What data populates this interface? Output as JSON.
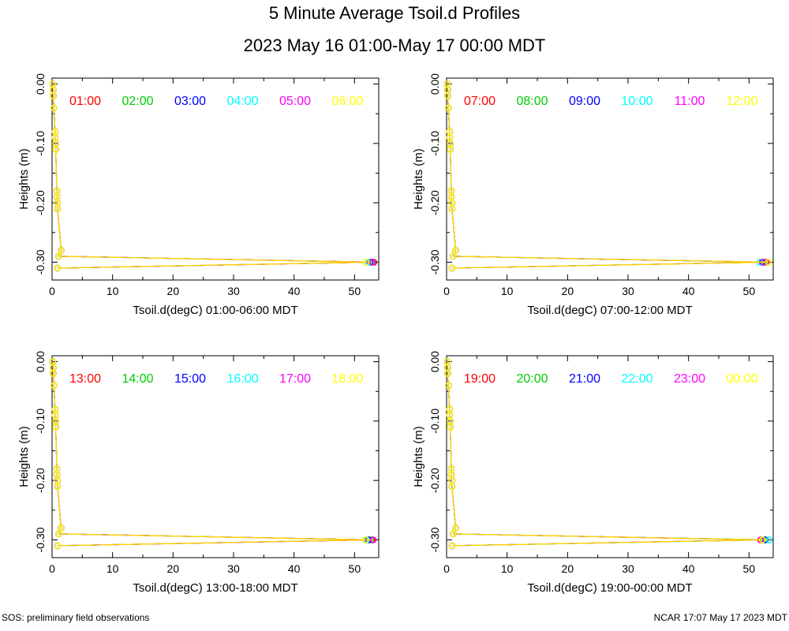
{
  "header": {
    "title": "5 Minute Average Tsoil.d Profiles",
    "subtitle": "2023 May 16 01:00-May 17 00:00 MDT"
  },
  "footer": {
    "left": "SOS: preliminary field observations",
    "right": "NCAR 17:07 May 17 2023 MDT"
  },
  "colors": {
    "series": [
      "#ff0000",
      "#00cc00",
      "#0000ff",
      "#00ffff",
      "#ff00ff",
      "#ffff00"
    ],
    "line": "#ffcc00"
  },
  "chart_data": [
    {
      "type": "line",
      "xlabel": "Tsoil.d(degC) 01:00-06:00 MDT",
      "ylabel": "Heights (m)",
      "xlim": [
        0,
        54
      ],
      "ylim": [
        -0.33,
        0.01
      ],
      "xticks": [
        "0",
        "10",
        "20",
        "30",
        "40",
        "50"
      ],
      "yticks": [
        "-0.30",
        "-0.20",
        "-0.10",
        "0.00"
      ],
      "legend": [
        "01:00",
        "02:00",
        "03:00",
        "04:00",
        "05:00",
        "06:00"
      ],
      "legend_placement": "top",
      "grid": false,
      "series": [
        {
          "name": "01:00",
          "x": [
            0.1,
            0.2,
            0.2,
            0.3,
            0.5,
            0.5,
            0.6,
            0.6,
            0.8,
            0.8,
            0.9,
            0.9,
            1.5,
            1.1,
            53.2,
            0.9
          ],
          "y": [
            0,
            -0.01,
            -0.02,
            -0.04,
            -0.08,
            -0.09,
            -0.1,
            -0.11,
            -0.18,
            -0.19,
            -0.2,
            -0.21,
            -0.28,
            -0.29,
            -0.3,
            -0.31
          ]
        },
        {
          "name": "02:00",
          "x": [
            0.1,
            0.2,
            0.2,
            0.3,
            0.5,
            0.5,
            0.6,
            0.6,
            0.8,
            0.8,
            0.9,
            0.9,
            1.5,
            1.1,
            52.9,
            0.9
          ],
          "y": [
            0,
            -0.01,
            -0.02,
            -0.04,
            -0.08,
            -0.09,
            -0.1,
            -0.11,
            -0.18,
            -0.19,
            -0.2,
            -0.21,
            -0.28,
            -0.29,
            -0.3,
            -0.31
          ]
        },
        {
          "name": "03:00",
          "x": [
            0.1,
            0.2,
            0.2,
            0.3,
            0.5,
            0.5,
            0.6,
            0.6,
            0.8,
            0.8,
            0.9,
            0.9,
            1.5,
            1.1,
            52.6,
            0.9
          ],
          "y": [
            0,
            -0.01,
            -0.02,
            -0.04,
            -0.08,
            -0.09,
            -0.1,
            -0.11,
            -0.18,
            -0.19,
            -0.2,
            -0.21,
            -0.28,
            -0.29,
            -0.3,
            -0.31
          ]
        },
        {
          "name": "04:00",
          "x": [
            0.1,
            0.2,
            0.2,
            0.3,
            0.5,
            0.5,
            0.6,
            0.6,
            0.8,
            0.8,
            0.9,
            0.9,
            1.5,
            1.1,
            52.3,
            0.9
          ],
          "y": [
            0,
            -0.01,
            -0.02,
            -0.04,
            -0.08,
            -0.09,
            -0.1,
            -0.11,
            -0.18,
            -0.19,
            -0.2,
            -0.21,
            -0.28,
            -0.29,
            -0.3,
            -0.31
          ]
        },
        {
          "name": "05:00",
          "x": [
            0.1,
            0.2,
            0.2,
            0.3,
            0.5,
            0.5,
            0.6,
            0.6,
            0.8,
            0.8,
            0.9,
            0.9,
            1.5,
            1.1,
            53.0,
            0.9
          ],
          "y": [
            0,
            -0.01,
            -0.02,
            -0.04,
            -0.08,
            -0.09,
            -0.1,
            -0.11,
            -0.18,
            -0.19,
            -0.2,
            -0.21,
            -0.28,
            -0.29,
            -0.3,
            -0.31
          ]
        },
        {
          "name": "06:00",
          "x": [
            0.1,
            0.2,
            0.2,
            0.3,
            0.5,
            0.5,
            0.6,
            0.6,
            0.8,
            0.8,
            0.9,
            0.9,
            1.5,
            1.1,
            51.9,
            0.9
          ],
          "y": [
            0,
            -0.01,
            -0.02,
            -0.04,
            -0.08,
            -0.09,
            -0.1,
            -0.11,
            -0.18,
            -0.19,
            -0.2,
            -0.21,
            -0.28,
            -0.29,
            -0.3,
            -0.31
          ]
        }
      ]
    },
    {
      "type": "line",
      "xlabel": "Tsoil.d(degC) 07:00-12:00 MDT",
      "ylabel": "Heights (m)",
      "xlim": [
        0,
        54
      ],
      "ylim": [
        -0.33,
        0.01
      ],
      "xticks": [
        "0",
        "10",
        "20",
        "30",
        "40",
        "50"
      ],
      "yticks": [
        "-0.30",
        "-0.20",
        "-0.10",
        "0.00"
      ],
      "legend": [
        "07:00",
        "08:00",
        "09:00",
        "10:00",
        "11:00",
        "12:00"
      ],
      "legend_placement": "top",
      "grid": false,
      "series": [
        {
          "name": "07:00",
          "x": [
            0.1,
            0.2,
            0.2,
            0.3,
            0.5,
            0.5,
            0.6,
            0.6,
            0.8,
            0.8,
            0.9,
            0.9,
            1.5,
            1.1,
            52.8,
            0.9
          ],
          "y": [
            0,
            -0.01,
            -0.02,
            -0.04,
            -0.08,
            -0.09,
            -0.1,
            -0.11,
            -0.18,
            -0.19,
            -0.2,
            -0.21,
            -0.28,
            -0.29,
            -0.3,
            -0.31
          ]
        },
        {
          "name": "08:00",
          "x": [
            0.1,
            0.2,
            0.2,
            0.3,
            0.5,
            0.5,
            0.6,
            0.6,
            0.8,
            0.8,
            0.9,
            0.9,
            1.5,
            1.1,
            52.5,
            0.9
          ],
          "y": [
            0,
            -0.01,
            -0.02,
            -0.04,
            -0.08,
            -0.09,
            -0.1,
            -0.11,
            -0.18,
            -0.19,
            -0.2,
            -0.21,
            -0.28,
            -0.29,
            -0.3,
            -0.31
          ]
        },
        {
          "name": "09:00",
          "x": [
            0.1,
            0.2,
            0.2,
            0.3,
            0.5,
            0.5,
            0.6,
            0.6,
            0.8,
            0.8,
            0.9,
            0.9,
            1.5,
            1.1,
            52.2,
            0.9
          ],
          "y": [
            0,
            -0.01,
            -0.02,
            -0.04,
            -0.08,
            -0.09,
            -0.1,
            -0.11,
            -0.18,
            -0.19,
            -0.2,
            -0.21,
            -0.28,
            -0.29,
            -0.3,
            -0.31
          ]
        },
        {
          "name": "10:00",
          "x": [
            0.1,
            0.2,
            0.2,
            0.3,
            0.5,
            0.5,
            0.6,
            0.6,
            0.8,
            0.8,
            0.9,
            0.9,
            1.5,
            1.1,
            51.8,
            0.9
          ],
          "y": [
            0,
            -0.01,
            -0.02,
            -0.04,
            -0.08,
            -0.09,
            -0.1,
            -0.11,
            -0.18,
            -0.19,
            -0.2,
            -0.21,
            -0.28,
            -0.29,
            -0.3,
            -0.31
          ]
        },
        {
          "name": "11:00",
          "x": [
            0.1,
            0.2,
            0.2,
            0.3,
            0.5,
            0.5,
            0.6,
            0.6,
            0.8,
            0.8,
            0.9,
            0.9,
            1.5,
            1.1,
            52.4,
            0.9
          ],
          "y": [
            0,
            -0.01,
            -0.02,
            -0.04,
            -0.08,
            -0.09,
            -0.1,
            -0.11,
            -0.18,
            -0.19,
            -0.2,
            -0.21,
            -0.28,
            -0.29,
            -0.3,
            -0.31
          ]
        },
        {
          "name": "12:00",
          "x": [
            0.1,
            0.2,
            0.2,
            0.3,
            0.5,
            0.5,
            0.6,
            0.6,
            0.8,
            0.8,
            0.9,
            0.9,
            1.5,
            1.1,
            53.2,
            0.9
          ],
          "y": [
            0,
            -0.01,
            -0.02,
            -0.04,
            -0.08,
            -0.09,
            -0.1,
            -0.11,
            -0.18,
            -0.19,
            -0.2,
            -0.21,
            -0.28,
            -0.29,
            -0.3,
            -0.31
          ]
        }
      ]
    },
    {
      "type": "line",
      "xlabel": "Tsoil.d(degC) 13:00-18:00 MDT",
      "ylabel": "Heights (m)",
      "xlim": [
        0,
        54
      ],
      "ylim": [
        -0.33,
        0.01
      ],
      "xticks": [
        "0",
        "10",
        "20",
        "30",
        "40",
        "50"
      ],
      "yticks": [
        "-0.30",
        "-0.20",
        "-0.10",
        "0.00"
      ],
      "legend": [
        "13:00",
        "14:00",
        "15:00",
        "16:00",
        "17:00",
        "18:00"
      ],
      "legend_placement": "top",
      "grid": false,
      "series": [
        {
          "name": "13:00",
          "x": [
            0.1,
            0.2,
            0.2,
            0.3,
            0.5,
            0.5,
            0.6,
            0.6,
            0.8,
            0.8,
            0.9,
            0.9,
            1.5,
            1.1,
            52.9,
            0.9
          ],
          "y": [
            0,
            -0.01,
            -0.02,
            -0.04,
            -0.08,
            -0.09,
            -0.1,
            -0.11,
            -0.18,
            -0.19,
            -0.2,
            -0.21,
            -0.28,
            -0.29,
            -0.3,
            -0.31
          ]
        },
        {
          "name": "14:00",
          "x": [
            0.1,
            0.2,
            0.2,
            0.3,
            0.5,
            0.5,
            0.6,
            0.6,
            0.8,
            0.8,
            0.9,
            0.9,
            1.5,
            1.1,
            52.6,
            0.9
          ],
          "y": [
            0,
            -0.01,
            -0.02,
            -0.04,
            -0.08,
            -0.09,
            -0.1,
            -0.11,
            -0.18,
            -0.19,
            -0.2,
            -0.21,
            -0.28,
            -0.29,
            -0.3,
            -0.31
          ]
        },
        {
          "name": "15:00",
          "x": [
            0.1,
            0.2,
            0.2,
            0.3,
            0.5,
            0.5,
            0.6,
            0.6,
            0.8,
            0.8,
            0.9,
            0.9,
            1.5,
            1.1,
            52.3,
            0.9
          ],
          "y": [
            0,
            -0.01,
            -0.02,
            -0.04,
            -0.08,
            -0.09,
            -0.1,
            -0.11,
            -0.18,
            -0.19,
            -0.2,
            -0.21,
            -0.28,
            -0.29,
            -0.3,
            -0.31
          ]
        },
        {
          "name": "16:00",
          "x": [
            0.1,
            0.2,
            0.2,
            0.3,
            0.5,
            0.5,
            0.6,
            0.6,
            0.8,
            0.8,
            0.9,
            0.9,
            1.5,
            1.1,
            52.0,
            0.9
          ],
          "y": [
            0,
            -0.01,
            -0.02,
            -0.04,
            -0.08,
            -0.09,
            -0.1,
            -0.11,
            -0.18,
            -0.19,
            -0.2,
            -0.21,
            -0.28,
            -0.29,
            -0.3,
            -0.31
          ]
        },
        {
          "name": "17:00",
          "x": [
            0.1,
            0.2,
            0.2,
            0.3,
            0.5,
            0.5,
            0.6,
            0.6,
            0.8,
            0.8,
            0.9,
            0.9,
            1.5,
            1.1,
            53.1,
            0.9
          ],
          "y": [
            0,
            -0.01,
            -0.02,
            -0.04,
            -0.08,
            -0.09,
            -0.1,
            -0.11,
            -0.18,
            -0.19,
            -0.2,
            -0.21,
            -0.28,
            -0.29,
            -0.3,
            -0.31
          ]
        },
        {
          "name": "18:00",
          "x": [
            0.1,
            0.2,
            0.2,
            0.3,
            0.5,
            0.5,
            0.6,
            0.6,
            0.8,
            0.8,
            0.9,
            0.9,
            1.5,
            1.1,
            51.8,
            0.9
          ],
          "y": [
            0,
            -0.01,
            -0.02,
            -0.04,
            -0.08,
            -0.09,
            -0.1,
            -0.11,
            -0.18,
            -0.19,
            -0.2,
            -0.21,
            -0.28,
            -0.29,
            -0.3,
            -0.31
          ]
        }
      ]
    },
    {
      "type": "line",
      "xlabel": "Tsoil.d(degC) 19:00-00:00 MDT",
      "ylabel": "Heights (m)",
      "xlim": [
        0,
        54
      ],
      "ylim": [
        -0.33,
        0.01
      ],
      "xticks": [
        "0",
        "10",
        "20",
        "30",
        "40",
        "50"
      ],
      "yticks": [
        "-0.30",
        "-0.20",
        "-0.10",
        "0.00"
      ],
      "legend": [
        "19:00",
        "20:00",
        "21:00",
        "22:00",
        "23:00",
        "00:00"
      ],
      "legend_placement": "top",
      "grid": false,
      "series": [
        {
          "name": "19:00",
          "x": [
            0.1,
            0.2,
            0.2,
            0.3,
            0.5,
            0.5,
            0.6,
            0.6,
            0.8,
            0.8,
            0.9,
            0.9,
            1.5,
            1.1,
            52.0,
            0.9
          ],
          "y": [
            0,
            -0.01,
            -0.02,
            -0.04,
            -0.08,
            -0.09,
            -0.1,
            -0.11,
            -0.18,
            -0.19,
            -0.2,
            -0.21,
            -0.28,
            -0.29,
            -0.3,
            -0.31
          ]
        },
        {
          "name": "20:00",
          "x": [
            0.1,
            0.2,
            0.2,
            0.3,
            0.5,
            0.5,
            0.6,
            0.6,
            0.8,
            0.8,
            0.9,
            0.9,
            1.5,
            1.1,
            52.4,
            0.9
          ],
          "y": [
            0,
            -0.01,
            -0.02,
            -0.04,
            -0.08,
            -0.09,
            -0.1,
            -0.11,
            -0.18,
            -0.19,
            -0.2,
            -0.21,
            -0.28,
            -0.29,
            -0.3,
            -0.31
          ]
        },
        {
          "name": "21:00",
          "x": [
            0.1,
            0.2,
            0.2,
            0.3,
            0.5,
            0.5,
            0.6,
            0.6,
            0.8,
            0.8,
            0.9,
            0.9,
            1.5,
            1.1,
            52.7,
            0.9
          ],
          "y": [
            0,
            -0.01,
            -0.02,
            -0.04,
            -0.08,
            -0.09,
            -0.1,
            -0.11,
            -0.18,
            -0.19,
            -0.2,
            -0.21,
            -0.28,
            -0.29,
            -0.3,
            -0.31
          ]
        },
        {
          "name": "22:00",
          "x": [
            0.1,
            0.2,
            0.2,
            0.3,
            0.5,
            0.5,
            0.6,
            0.6,
            0.8,
            0.8,
            0.9,
            0.9,
            1.5,
            1.1,
            53.3,
            0.9
          ],
          "y": [
            0,
            -0.01,
            -0.02,
            -0.04,
            -0.08,
            -0.09,
            -0.1,
            -0.11,
            -0.18,
            -0.19,
            -0.2,
            -0.21,
            -0.28,
            -0.29,
            -0.3,
            -0.31
          ]
        },
        {
          "name": "23:00",
          "x": [
            0.1,
            0.2,
            0.2,
            0.3,
            0.5,
            0.5,
            0.6,
            0.6,
            0.8,
            0.8,
            0.9,
            0.9,
            1.5,
            1.1,
            51.9,
            0.9
          ],
          "y": [
            0,
            -0.01,
            -0.02,
            -0.04,
            -0.08,
            -0.09,
            -0.1,
            -0.11,
            -0.18,
            -0.19,
            -0.2,
            -0.21,
            -0.28,
            -0.29,
            -0.3,
            -0.31
          ]
        },
        {
          "name": "00:00",
          "x": [
            0.1,
            0.2,
            0.2,
            0.3,
            0.5,
            0.5,
            0.6,
            0.6,
            0.8,
            0.8,
            0.9,
            0.9,
            1.5,
            1.1,
            52.2,
            0.9
          ],
          "y": [
            0,
            -0.01,
            -0.02,
            -0.04,
            -0.08,
            -0.09,
            -0.1,
            -0.11,
            -0.18,
            -0.19,
            -0.2,
            -0.21,
            -0.28,
            -0.29,
            -0.3,
            -0.31
          ]
        }
      ]
    }
  ]
}
